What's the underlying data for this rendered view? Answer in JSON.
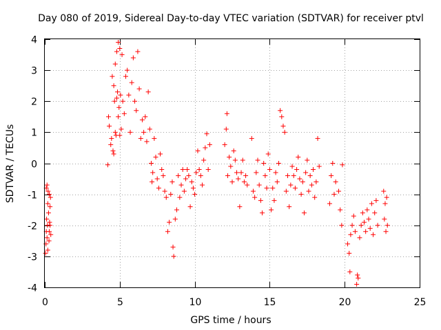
{
  "chart_data": {
    "type": "scatter",
    "title": "Day 080 of 2019, Sidereal Day-to-day VTEC variation (SDTVAR) for receiver ptvl",
    "xlabel": "GPS time / hours",
    "ylabel": "SDTVAR / TECUs",
    "xlim": [
      0,
      25
    ],
    "ylim": [
      -4,
      4
    ],
    "xticks": [
      "0",
      "5",
      "10",
      "15",
      "20",
      "25"
    ],
    "yticks": [
      "4",
      "3",
      "2",
      "1",
      "0",
      "-1",
      "-2",
      "-3",
      "-4"
    ],
    "grid": true,
    "marker": "+",
    "color": "#ff0000",
    "series": [
      {
        "name": "ptvl",
        "points": [
          [
            0.05,
            -2.9
          ],
          [
            0.08,
            -2.6
          ],
          [
            0.1,
            -2.2
          ],
          [
            0.12,
            -1.8
          ],
          [
            0.15,
            -2.4
          ],
          [
            0.18,
            -2.0
          ],
          [
            0.2,
            -1.3
          ],
          [
            0.22,
            -0.9
          ],
          [
            0.25,
            -1.6
          ],
          [
            0.28,
            -2.5
          ],
          [
            0.3,
            -2.2
          ],
          [
            0.32,
            -1.9
          ],
          [
            0.35,
            -1.4
          ],
          [
            0.38,
            -1.1
          ],
          [
            0.4,
            -2.3
          ],
          [
            0.1,
            -0.8
          ],
          [
            0.15,
            -0.7
          ],
          [
            0.2,
            -2.8
          ],
          [
            0.3,
            -1.0
          ],
          [
            0.35,
            -2.0
          ],
          [
            4.2,
            -0.05
          ],
          [
            4.25,
            1.5
          ],
          [
            4.3,
            1.2
          ],
          [
            4.4,
            0.6
          ],
          [
            4.45,
            0.8
          ],
          [
            4.5,
            2.8
          ],
          [
            4.55,
            0.4
          ],
          [
            4.6,
            2.5
          ],
          [
            4.65,
            2.0
          ],
          [
            4.7,
            3.2
          ],
          [
            4.75,
            0.9
          ],
          [
            4.8,
            3.6
          ],
          [
            4.85,
            2.3
          ],
          [
            4.9,
            3.9
          ],
          [
            4.95,
            1.8
          ],
          [
            5.0,
            3.7
          ],
          [
            5.05,
            2.2
          ],
          [
            5.1,
            1.1
          ],
          [
            5.15,
            3.5
          ],
          [
            5.2,
            2.0
          ],
          [
            4.6,
            0.3
          ],
          [
            4.7,
            1.0
          ],
          [
            4.8,
            2.1
          ],
          [
            4.9,
            1.5
          ],
          [
            5.0,
            0.9
          ],
          [
            5.3,
            1.6
          ],
          [
            5.4,
            2.8
          ],
          [
            5.5,
            3.0
          ],
          [
            5.6,
            2.2
          ],
          [
            5.7,
            1.0
          ],
          [
            5.8,
            2.6
          ],
          [
            5.9,
            3.4
          ],
          [
            6.0,
            2.0
          ],
          [
            6.1,
            1.7
          ],
          [
            6.2,
            3.6
          ],
          [
            6.3,
            2.4
          ],
          [
            6.4,
            0.8
          ],
          [
            6.5,
            1.4
          ],
          [
            6.6,
            1.0
          ],
          [
            6.7,
            1.5
          ],
          [
            6.8,
            0.7
          ],
          [
            6.9,
            2.3
          ],
          [
            7.0,
            1.1
          ],
          [
            7.1,
            0.0
          ],
          [
            7.15,
            -0.6
          ],
          [
            7.2,
            -0.3
          ],
          [
            7.3,
            0.8
          ],
          [
            7.4,
            0.2
          ],
          [
            7.5,
            -0.5
          ],
          [
            7.6,
            -0.8
          ],
          [
            7.7,
            0.3
          ],
          [
            7.8,
            -0.2
          ],
          [
            7.9,
            -0.4
          ],
          [
            8.0,
            -0.9
          ],
          [
            8.1,
            -1.1
          ],
          [
            8.2,
            -2.2
          ],
          [
            8.3,
            -1.9
          ],
          [
            8.4,
            -1.0
          ],
          [
            8.5,
            -0.6
          ],
          [
            8.55,
            -2.7
          ],
          [
            8.6,
            -3.0
          ],
          [
            8.7,
            -1.8
          ],
          [
            8.8,
            -1.5
          ],
          [
            8.9,
            -0.4
          ],
          [
            9.0,
            -1.1
          ],
          [
            9.1,
            -0.7
          ],
          [
            9.2,
            -0.2
          ],
          [
            9.3,
            -0.9
          ],
          [
            9.4,
            -0.5
          ],
          [
            9.5,
            -0.2
          ],
          [
            9.6,
            -0.4
          ],
          [
            9.7,
            -1.4
          ],
          [
            9.8,
            -0.6
          ],
          [
            9.9,
            -0.8
          ],
          [
            10.0,
            -1.0
          ],
          [
            10.1,
            -0.3
          ],
          [
            10.2,
            0.4
          ],
          [
            10.3,
            -0.2
          ],
          [
            10.4,
            -0.4
          ],
          [
            10.5,
            -0.7
          ],
          [
            10.6,
            0.1
          ],
          [
            10.7,
            0.5
          ],
          [
            10.8,
            0.95
          ],
          [
            10.9,
            -0.2
          ],
          [
            11.0,
            0.6
          ],
          [
            12.0,
            0.6
          ],
          [
            12.1,
            1.1
          ],
          [
            12.15,
            1.6
          ],
          [
            12.2,
            -0.4
          ],
          [
            12.3,
            0.2
          ],
          [
            12.4,
            -0.1
          ],
          [
            12.5,
            -0.6
          ],
          [
            12.6,
            0.4
          ],
          [
            12.7,
            0.1
          ],
          [
            12.8,
            -0.3
          ],
          [
            12.9,
            -0.5
          ],
          [
            13.0,
            -1.4
          ],
          [
            13.1,
            -0.3
          ],
          [
            13.2,
            0.1
          ],
          [
            13.3,
            -0.6
          ],
          [
            13.4,
            -0.4
          ],
          [
            13.5,
            -0.7
          ],
          [
            13.8,
            0.8
          ],
          [
            13.9,
            -0.9
          ],
          [
            14.0,
            -1.1
          ],
          [
            14.1,
            -0.3
          ],
          [
            14.2,
            0.1
          ],
          [
            14.3,
            -0.7
          ],
          [
            14.4,
            -1.2
          ],
          [
            14.5,
            -1.6
          ],
          [
            14.6,
            0.0
          ],
          [
            14.7,
            -0.4
          ],
          [
            14.8,
            -0.8
          ],
          [
            14.9,
            0.3
          ],
          [
            15.0,
            -0.2
          ],
          [
            15.1,
            -1.5
          ],
          [
            15.2,
            -0.8
          ],
          [
            15.3,
            -1.2
          ],
          [
            15.4,
            -0.3
          ],
          [
            15.5,
            -0.6
          ],
          [
            15.6,
            0.0
          ],
          [
            15.7,
            1.7
          ],
          [
            15.8,
            1.5
          ],
          [
            15.9,
            1.2
          ],
          [
            16.0,
            1.0
          ],
          [
            16.1,
            -0.9
          ],
          [
            16.2,
            -0.4
          ],
          [
            16.3,
            -1.4
          ],
          [
            16.4,
            -0.7
          ],
          [
            16.5,
            -0.1
          ],
          [
            16.6,
            -0.4
          ],
          [
            16.7,
            -0.8
          ],
          [
            16.8,
            -0.2
          ],
          [
            16.9,
            0.2
          ],
          [
            17.0,
            -0.5
          ],
          [
            17.1,
            -1.0
          ],
          [
            17.2,
            -0.6
          ],
          [
            17.3,
            -1.6
          ],
          [
            17.4,
            -0.3
          ],
          [
            17.5,
            0.1
          ],
          [
            17.6,
            -0.9
          ],
          [
            17.7,
            -0.4
          ],
          [
            17.8,
            -0.7
          ],
          [
            17.9,
            -0.2
          ],
          [
            18.0,
            -1.1
          ],
          [
            18.1,
            -0.6
          ],
          [
            18.2,
            0.8
          ],
          [
            18.3,
            -0.1
          ],
          [
            19.0,
            -1.3
          ],
          [
            19.1,
            -0.4
          ],
          [
            19.2,
            0.0
          ],
          [
            19.3,
            -1.0
          ],
          [
            19.4,
            -0.6
          ],
          [
            19.6,
            -0.9
          ],
          [
            19.7,
            -1.5
          ],
          [
            19.8,
            -2.0
          ],
          [
            19.85,
            -0.05
          ],
          [
            20.2,
            -2.6
          ],
          [
            20.3,
            -2.9
          ],
          [
            20.35,
            -3.5
          ],
          [
            20.4,
            -2.3
          ],
          [
            20.5,
            -2.0
          ],
          [
            20.6,
            -1.7
          ],
          [
            20.7,
            -2.2
          ],
          [
            20.8,
            -3.9
          ],
          [
            20.85,
            -3.6
          ],
          [
            20.9,
            -3.7
          ],
          [
            21.0,
            -2.4
          ],
          [
            21.1,
            -2.0
          ],
          [
            21.2,
            -1.6
          ],
          [
            21.3,
            -1.9
          ],
          [
            21.4,
            -2.2
          ],
          [
            21.5,
            -1.5
          ],
          [
            21.6,
            -1.8
          ],
          [
            21.7,
            -2.1
          ],
          [
            21.8,
            -1.3
          ],
          [
            21.9,
            -2.3
          ],
          [
            22.0,
            -1.6
          ],
          [
            22.1,
            -1.2
          ],
          [
            22.2,
            -2.0
          ],
          [
            22.6,
            -0.9
          ],
          [
            22.65,
            -1.8
          ],
          [
            22.7,
            -1.3
          ],
          [
            22.75,
            -2.2
          ],
          [
            22.8,
            -1.1
          ],
          [
            22.85,
            -2.0
          ]
        ]
      }
    ]
  }
}
